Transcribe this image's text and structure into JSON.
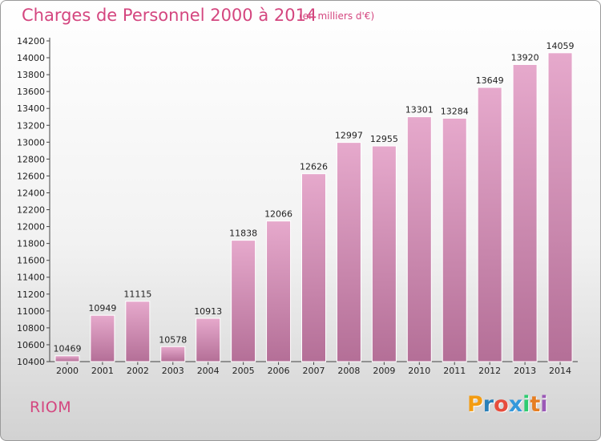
{
  "title": "Charges de Personnel 2000 à 2014",
  "subtitle": "(en milliers d'€)",
  "city": "RIOM",
  "logo": {
    "letters": [
      "P",
      "r",
      "o",
      "x",
      "i",
      "t",
      "i"
    ],
    "colors": [
      "#f39c12",
      "#2980b9",
      "#e74c3c",
      "#3498db",
      "#2ecc71",
      "#e67e22",
      "#9b59b6"
    ]
  },
  "colors": {
    "bar_top": "#e6a9cc",
    "bar_bottom": "#b46f97",
    "accent": "#d4467f"
  },
  "chart_data": {
    "type": "bar",
    "categories": [
      "2000",
      "2001",
      "2002",
      "2003",
      "2004",
      "2005",
      "2006",
      "2007",
      "2008",
      "2009",
      "2010",
      "2011",
      "2012",
      "2013",
      "2014"
    ],
    "values": [
      10469,
      10949,
      11115,
      10578,
      10913,
      11838,
      12066,
      12626,
      12997,
      12955,
      13301,
      13284,
      13649,
      13920,
      14059
    ],
    "data_labels": [
      "10469",
      "10949",
      "11115",
      "10578",
      "10913",
      "11838",
      "12066",
      "12626",
      "12997",
      "12955",
      "13301",
      "13284",
      "13649",
      "13920",
      "14059"
    ],
    "yticks": [
      "10400",
      "10600",
      "10800",
      "11000",
      "11200",
      "11400",
      "11600",
      "11800",
      "12000",
      "12200",
      "12400",
      "12600",
      "12800",
      "13000",
      "13200",
      "13400",
      "13600",
      "13800",
      "14000",
      "14200"
    ],
    "ylim": [
      10400,
      14200
    ],
    "grid": false,
    "legend": "none"
  }
}
